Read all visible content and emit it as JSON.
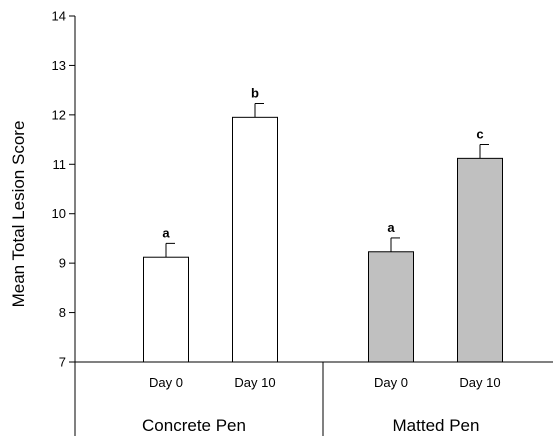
{
  "chart_data": {
    "type": "bar",
    "title": "",
    "xlabel": "",
    "ylabel": "Mean Total Lesion Score",
    "ylim": [
      7,
      14
    ],
    "yticks": [
      7,
      8,
      9,
      10,
      11,
      12,
      13,
      14
    ],
    "grid": false,
    "groups": [
      {
        "name": "Concrete Pen",
        "color": "#ffffff",
        "bars": [
          {
            "category": "Day 0",
            "value": 9.12,
            "error": 0.28,
            "significance": "a"
          },
          {
            "category": "Day 10",
            "value": 11.95,
            "error": 0.28,
            "significance": "b"
          }
        ]
      },
      {
        "name": "Matted Pen",
        "color": "#c0c0c0",
        "bars": [
          {
            "category": "Day 0",
            "value": 9.23,
            "error": 0.28,
            "significance": "a"
          },
          {
            "category": "Day 10",
            "value": 11.12,
            "error": 0.28,
            "significance": "c"
          }
        ]
      }
    ]
  }
}
